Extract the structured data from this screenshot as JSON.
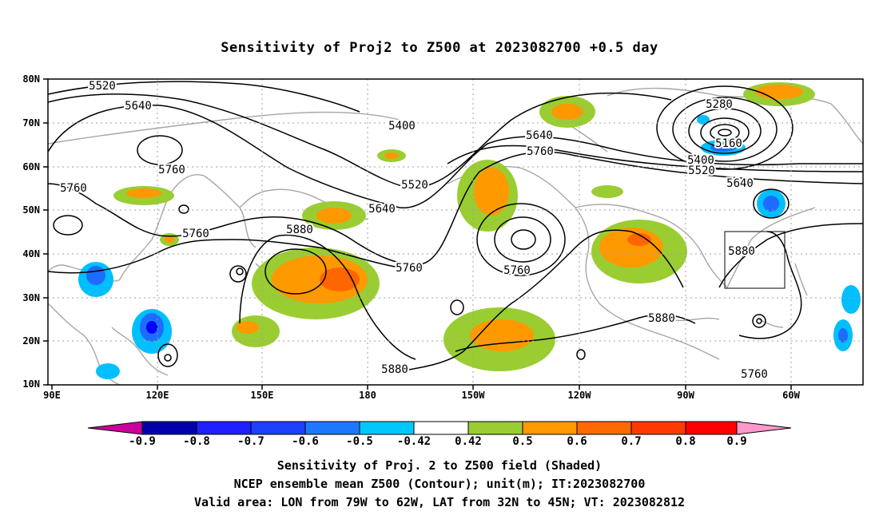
{
  "title": "Sensitivity of Proj2 to Z500 at 2023082700 +0.5 day",
  "map": {
    "lat_labels": [
      "80N",
      "70N",
      "60N",
      "50N",
      "40N",
      "30N",
      "20N",
      "10N"
    ],
    "lon_labels": [
      "90E",
      "120E",
      "150E",
      "180",
      "150W",
      "120W",
      "90W",
      "60W"
    ],
    "contour_labels": [
      "5520",
      "5640",
      "5400",
      "5760",
      "5760",
      "5280",
      "5160",
      "5400",
      "5520",
      "5640",
      "5640",
      "5760",
      "5760",
      "5880",
      "5520",
      "5640",
      "5760",
      "5760",
      "5880",
      "5880",
      "5880",
      "5760"
    ],
    "colors": {
      "contour": "#000000",
      "coastline": "#a6a6a6",
      "grid": "#a0a0a0",
      "pos_low": "#9acd32",
      "pos_mid": "#ff9900",
      "pos_high": "#ff6600",
      "neg_low": "#00bfff",
      "neg_mid": "#1e6cff",
      "neg_high": "#0000ff"
    }
  },
  "colorbar": {
    "labels": [
      "-0.9",
      "-0.8",
      "-0.7",
      "-0.6",
      "-0.5",
      "-0.42",
      "0.42",
      "0.5",
      "0.6",
      "0.7",
      "0.8",
      "0.9"
    ],
    "colors": [
      "#0000aa",
      "#1f1fff",
      "#1e40ff",
      "#1e78ff",
      "#00c8ff",
      "#ffffff",
      "#9acd32",
      "#ff9a00",
      "#ff6a00",
      "#ff3a00",
      "#ff0000"
    ],
    "end_low": "#cc0099",
    "end_high": "#ff99cc"
  },
  "captions": {
    "line1": "Sensitivity of Proj. 2 to Z500 field (Shaded)",
    "line2": "NCEP ensemble mean Z500 (Contour); unit(m); IT:2023082700",
    "line3": "Valid area: LON from 79W to 62W, LAT from 32N to 45N; VT: 2023082812"
  }
}
